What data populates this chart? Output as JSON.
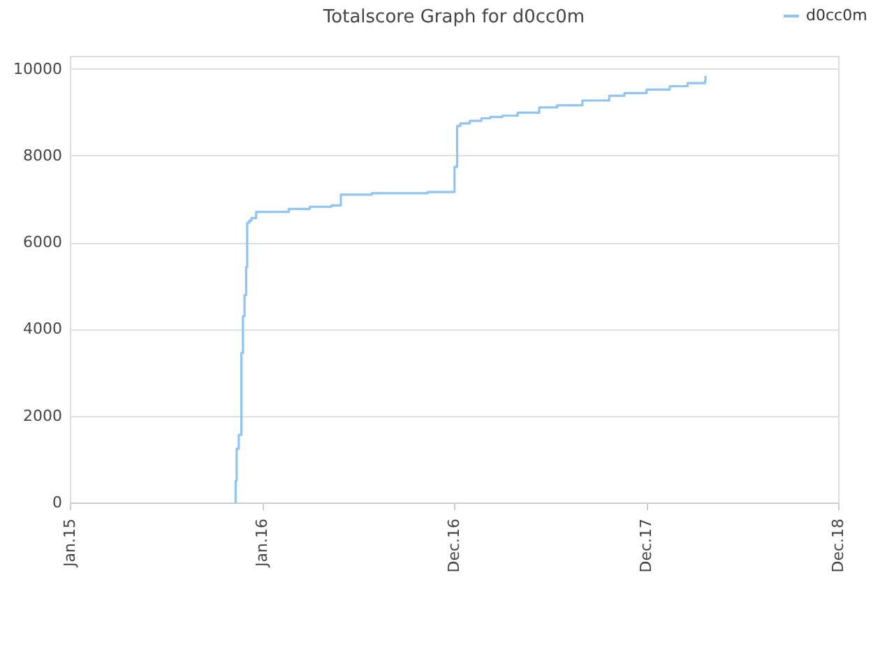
{
  "chart_data": {
    "type": "step",
    "title": "Totalscore Graph for d0cc0m",
    "x": [
      "2015-11-11",
      "2015-11-12",
      "2015-11-14",
      "2015-11-18",
      "2015-11-23",
      "2015-11-26",
      "2015-11-29",
      "2015-12-02",
      "2015-12-04",
      "2015-12-08",
      "2015-12-12",
      "2015-12-21",
      "2016-02-21",
      "2016-04-01",
      "2016-05-12",
      "2016-05-30",
      "2016-07-28",
      "2016-11-11",
      "2017-01-01",
      "2017-01-06",
      "2017-01-12",
      "2017-01-30",
      "2017-02-21",
      "2017-03-10",
      "2017-04-02",
      "2017-05-01",
      "2017-06-11",
      "2017-07-15",
      "2017-09-01",
      "2017-10-22",
      "2017-11-20",
      "2018-01-01",
      "2018-02-14",
      "2018-03-20",
      "2018-04-22",
      "2018-04-23"
    ],
    "series": [
      {
        "name": "d0cc0m",
        "color": "#90c4f4",
        "values": [
          0,
          500,
          1240,
          1560,
          3450,
          4300,
          4780,
          5430,
          6450,
          6500,
          6560,
          6700,
          6770,
          6820,
          6850,
          7100,
          7130,
          7160,
          7740,
          8680,
          8740,
          8800,
          8860,
          8890,
          8920,
          8990,
          9110,
          9160,
          9270,
          9380,
          9440,
          9520,
          9600,
          9670,
          9730,
          9840
        ]
      }
    ],
    "xlim": [
      "2015-01-01",
      "2018-12-31"
    ],
    "xticks": [
      {
        "value": "2015-01-01",
        "label": "Jan.15"
      },
      {
        "value": "2016-01-01",
        "label": "Jan.16"
      },
      {
        "value": "2016-12-31",
        "label": "Dec.16"
      },
      {
        "value": "2017-12-31",
        "label": "Dec.17"
      },
      {
        "value": "2018-12-31",
        "label": "Dec.18"
      }
    ],
    "ylim": [
      0,
      10300
    ],
    "yticks": [
      0,
      2000,
      4000,
      6000,
      8000,
      10000
    ],
    "grid": "y",
    "legend": "top right",
    "marker": "none"
  }
}
